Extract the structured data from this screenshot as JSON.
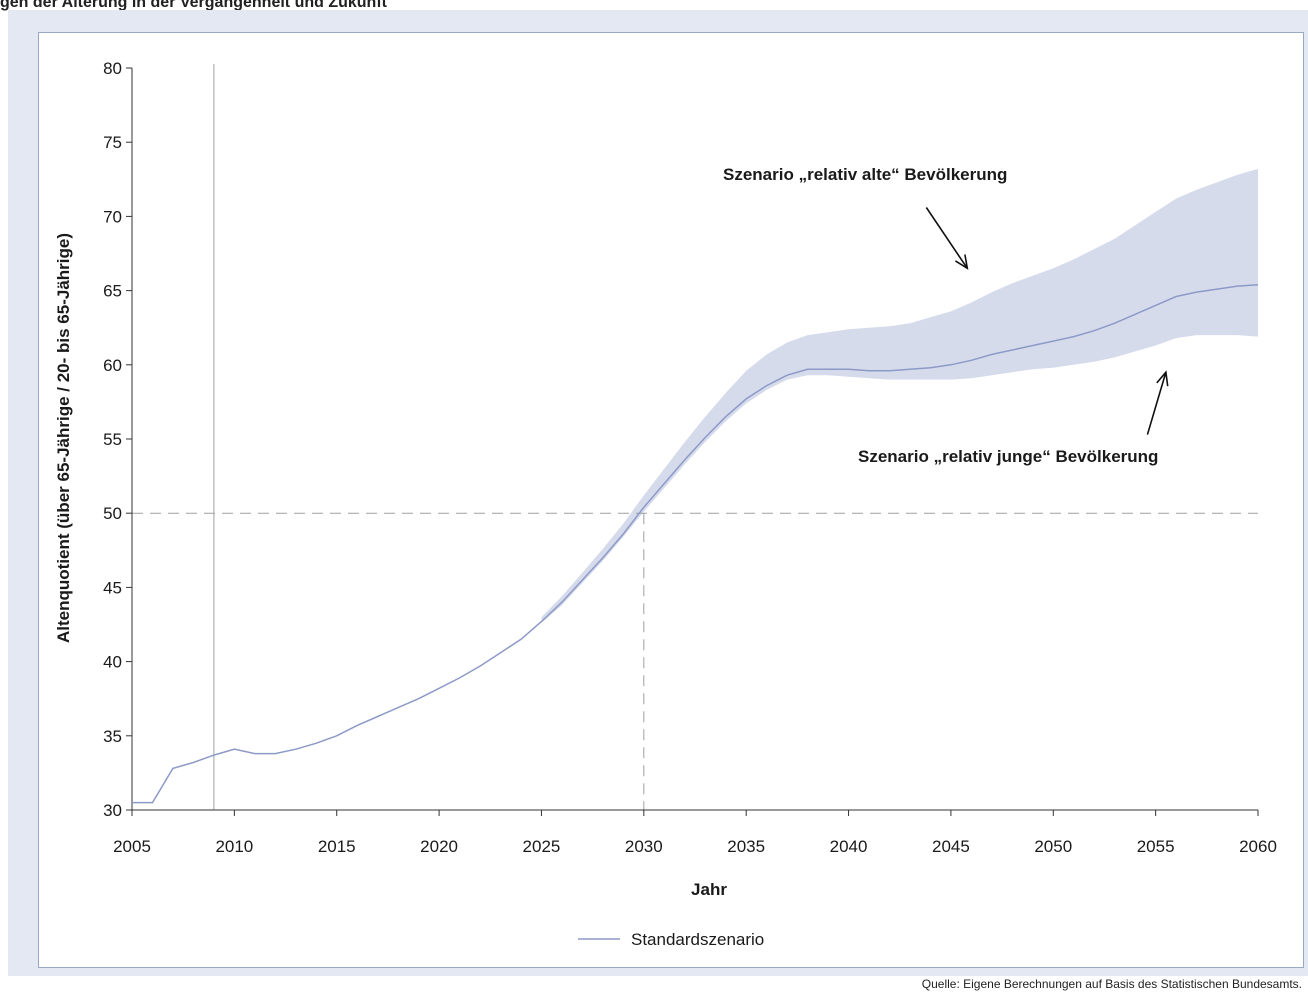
{
  "header": {
    "clipped_text": "gen der Alterung in der Vergangenheit und Zukunft"
  },
  "colors": {
    "background": "#e4e8f2",
    "band": "#d6dbec",
    "line": "#8d9ac8",
    "ref": "#a0a0a0"
  },
  "chart_data": {
    "type": "area",
    "xlabel": "Jahr",
    "ylabel": "Altenquotient (über 65-Jährige / 20- bis 65-Jährige)",
    "xlim": [
      2005,
      2060
    ],
    "ylim": [
      30,
      80
    ],
    "xticks": [
      "2005",
      "2010",
      "2015",
      "2020",
      "2025",
      "2030",
      "2035",
      "2040",
      "2045",
      "2050",
      "2055",
      "2060"
    ],
    "yticks": [
      "30",
      "35",
      "40",
      "45",
      "50",
      "55",
      "60",
      "65",
      "70",
      "75",
      "80"
    ],
    "legend": {
      "position": "bottom",
      "entries": [
        "Standardszenario"
      ]
    },
    "series": [
      {
        "name": "Standardszenario",
        "x": [
          2005,
          2006,
          2007,
          2008,
          2009,
          2010,
          2011,
          2012,
          2013,
          2014,
          2015,
          2016,
          2017,
          2018,
          2019,
          2020,
          2021,
          2022,
          2023,
          2024,
          2025,
          2026,
          2027,
          2028,
          2029,
          2030,
          2031,
          2032,
          2033,
          2034,
          2035,
          2036,
          2037,
          2038,
          2039,
          2040,
          2041,
          2042,
          2043,
          2044,
          2045,
          2046,
          2047,
          2048,
          2049,
          2050,
          2051,
          2052,
          2053,
          2054,
          2055,
          2056,
          2057,
          2058,
          2059,
          2060
        ],
        "y": [
          30.5,
          30.5,
          32.8,
          33.2,
          33.7,
          34.1,
          33.8,
          33.8,
          34.1,
          34.5,
          35.0,
          35.7,
          36.3,
          36.9,
          37.5,
          38.2,
          38.9,
          39.7,
          40.6,
          41.5,
          42.7,
          44.0,
          45.5,
          47.0,
          48.6,
          50.4,
          52.0,
          53.6,
          55.1,
          56.5,
          57.7,
          58.6,
          59.3,
          59.7,
          59.7,
          59.7,
          59.6,
          59.6,
          59.7,
          59.8,
          60.0,
          60.3,
          60.7,
          61.0,
          61.3,
          61.6,
          61.9,
          62.3,
          62.8,
          63.4,
          64.0,
          64.6,
          64.9,
          65.1,
          65.3,
          65.4
        ]
      }
    ],
    "band": {
      "x": [
        2025,
        2026,
        2027,
        2028,
        2029,
        2030,
        2031,
        2032,
        2033,
        2034,
        2035,
        2036,
        2037,
        2038,
        2039,
        2040,
        2041,
        2042,
        2043,
        2044,
        2045,
        2046,
        2047,
        2048,
        2049,
        2050,
        2051,
        2052,
        2053,
        2054,
        2055,
        2056,
        2057,
        2058,
        2059,
        2060
      ],
      "upper": [
        43.0,
        44.4,
        46.0,
        47.6,
        49.3,
        51.2,
        53.0,
        54.8,
        56.5,
        58.1,
        59.6,
        60.7,
        61.5,
        62.0,
        62.2,
        62.4,
        62.5,
        62.6,
        62.8,
        63.2,
        63.6,
        64.2,
        64.9,
        65.5,
        66.0,
        66.5,
        67.1,
        67.8,
        68.5,
        69.4,
        70.3,
        71.2,
        71.8,
        72.3,
        72.8,
        73.2
      ],
      "lower": [
        42.6,
        43.8,
        45.3,
        46.8,
        48.4,
        50.1,
        51.7,
        53.3,
        54.8,
        56.2,
        57.4,
        58.3,
        59.0,
        59.3,
        59.3,
        59.2,
        59.1,
        59.0,
        59.0,
        59.0,
        59.0,
        59.1,
        59.3,
        59.5,
        59.7,
        59.8,
        60.0,
        60.2,
        60.5,
        60.9,
        61.3,
        61.8,
        62.0,
        62.0,
        62.0,
        61.9
      ]
    },
    "reference_lines": {
      "vertical_solid_x": 2009,
      "horizontal_dashed_y": 50,
      "vertical_dashed_x": 2030
    },
    "annotations": [
      {
        "text": "Szenario „relativ alte“ Bevölkerung",
        "arrow_to": [
          2045.8,
          66.5
        ],
        "arrow_from": [
          2043.8,
          70.6
        ]
      },
      {
        "text": "Szenario „relativ junge“ Bevölkerung",
        "arrow_to": [
          2055.5,
          59.5
        ],
        "arrow_from": [
          2054.6,
          55.3
        ]
      }
    ]
  },
  "source": "Quelle: Eigene Berechnungen auf Basis des Statistischen Bundesamts."
}
